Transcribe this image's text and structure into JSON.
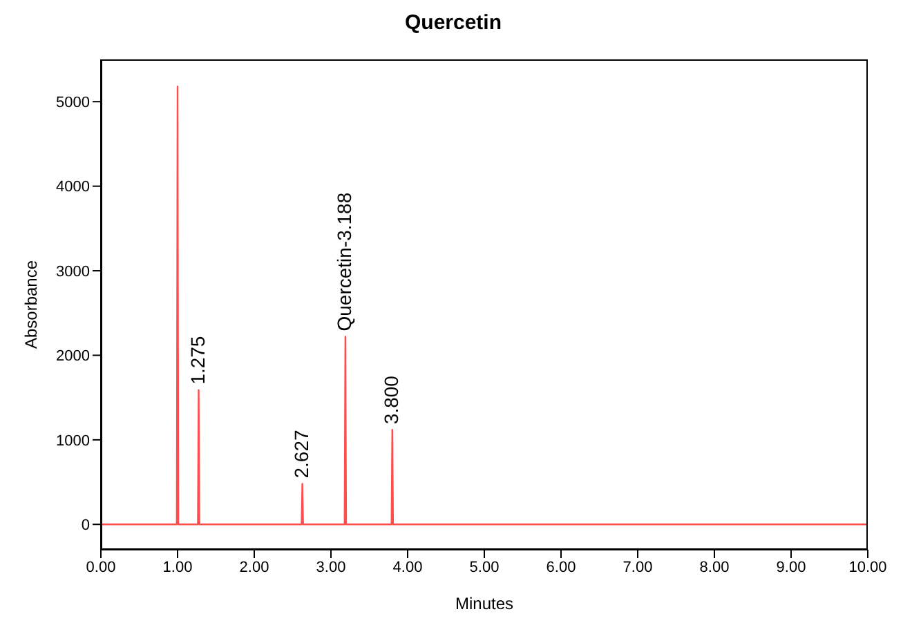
{
  "chart_data": {
    "type": "line",
    "title": "Quercetin",
    "xlabel": "Minutes",
    "ylabel": "Absorbance",
    "x": [
      0,
      0.99,
      1.0,
      1.01,
      1.265,
      1.275,
      1.285,
      2.617,
      2.627,
      2.637,
      3.178,
      3.188,
      3.198,
      3.79,
      3.8,
      3.81,
      10
    ],
    "series": [
      {
        "color": "#ff4d4d",
        "values": [
          0,
          0,
          5180,
          0,
          0,
          1590,
          0,
          0,
          480,
          0,
          0,
          2220,
          0,
          0,
          1120,
          0,
          0
        ]
      }
    ],
    "xlim": [
      0,
      10
    ],
    "xticks": [
      {
        "value": 0,
        "label": "0.00"
      },
      {
        "value": 1,
        "label": "1.00"
      },
      {
        "value": 2,
        "label": "2.00"
      },
      {
        "value": 3,
        "label": "3.00"
      },
      {
        "value": 4,
        "label": "4.00"
      },
      {
        "value": 5,
        "label": "5.00"
      },
      {
        "value": 6,
        "label": "6.00"
      },
      {
        "value": 7,
        "label": "7.00"
      },
      {
        "value": 8,
        "label": "8.00"
      },
      {
        "value": 9,
        "label": "9.00"
      },
      {
        "value": 10,
        "label": "10.00"
      }
    ],
    "ylim": [
      -300,
      5500
    ],
    "yticks": [
      0,
      1000,
      2000,
      3000,
      4000,
      5000
    ],
    "annotations": [
      {
        "text": "1.275",
        "x": 1.275,
        "y": 1590
      },
      {
        "text": "2.627",
        "x": 2.627,
        "y": 480
      },
      {
        "text": "Quercetin-3.188",
        "x": 3.188,
        "y": 2220
      },
      {
        "text": "3.800",
        "x": 3.8,
        "y": 1120
      }
    ],
    "grid": false,
    "legend": false,
    "marker": "none",
    "line_style": "solid"
  }
}
